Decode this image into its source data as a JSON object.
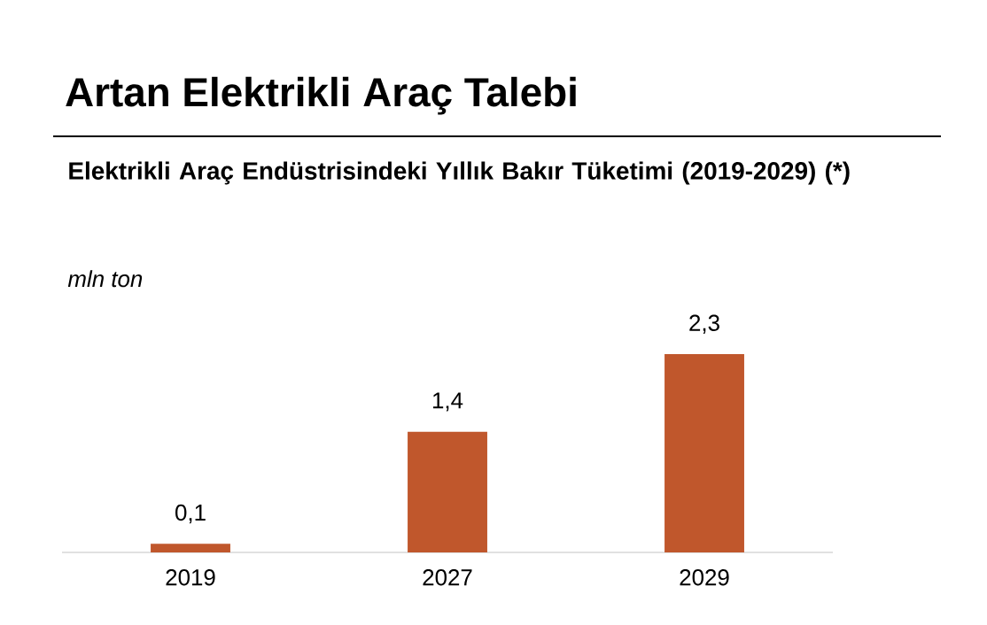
{
  "chart_data": {
    "type": "bar",
    "title": "Artan Elektrikli Araç Talebi",
    "subtitle": "Elektrikli Araç Endüstrisindeki  Yıllık Bakır Tüketimi (2019-2029) (*)",
    "ylabel": "mln ton",
    "categories": [
      "2019",
      "2027",
      "2029"
    ],
    "values": [
      0.1,
      1.4,
      2.3
    ],
    "value_labels": [
      "0,1",
      "1,4",
      "2,3"
    ],
    "color": "#c0572c"
  }
}
